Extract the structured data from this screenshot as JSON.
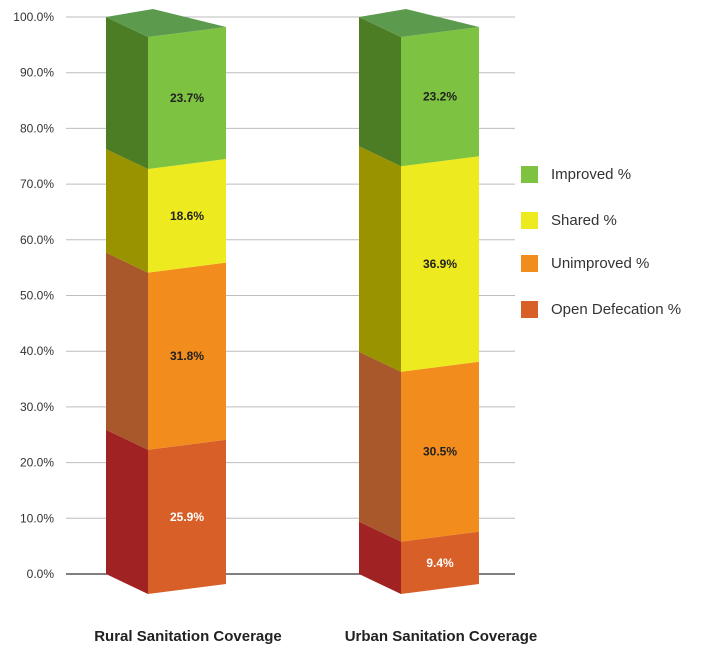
{
  "chart_data": {
    "type": "bar",
    "stacked": true,
    "categories": [
      "Rural Sanitation Coverage",
      "Urban Sanitation Coverage"
    ],
    "series": [
      {
        "name": "Open Defecation %",
        "values": [
          25.9,
          9.4
        ],
        "labels": [
          "25.9%",
          "9.4%"
        ],
        "color": "#d85f28",
        "side_color": "#a02222",
        "label_color": "#ffffff"
      },
      {
        "name": "Unimproved %",
        "values": [
          31.8,
          30.5
        ],
        "labels": [
          "31.8%",
          "30.5%"
        ],
        "color": "#f28c1c",
        "side_color": "#a8582a",
        "label_color": "#222222"
      },
      {
        "name": "Shared %",
        "values": [
          18.6,
          36.9
        ],
        "labels": [
          "18.6%",
          "36.9%"
        ],
        "color": "#eeea20",
        "side_color": "#9a9300",
        "label_color": "#222222"
      },
      {
        "name": "Improved %",
        "values": [
          23.7,
          23.2
        ],
        "labels": [
          "23.7%",
          "23.2%"
        ],
        "color": "#7dc240",
        "side_color": "#4c7c24",
        "label_color": "#222222"
      }
    ],
    "y_ticks": [
      "0.0%",
      "10.0%",
      "20.0%",
      "30.0%",
      "40.0%",
      "50.0%",
      "60.0%",
      "70.0%",
      "80.0%",
      "90.0%",
      "100.0%"
    ],
    "ylim": [
      0,
      100
    ],
    "grid": true,
    "legend_position": "right",
    "legend_order": [
      "Improved %",
      "Shared %",
      "Unimproved %",
      "Open Defecation %"
    ],
    "title": "",
    "xlabel": "",
    "ylabel": ""
  }
}
